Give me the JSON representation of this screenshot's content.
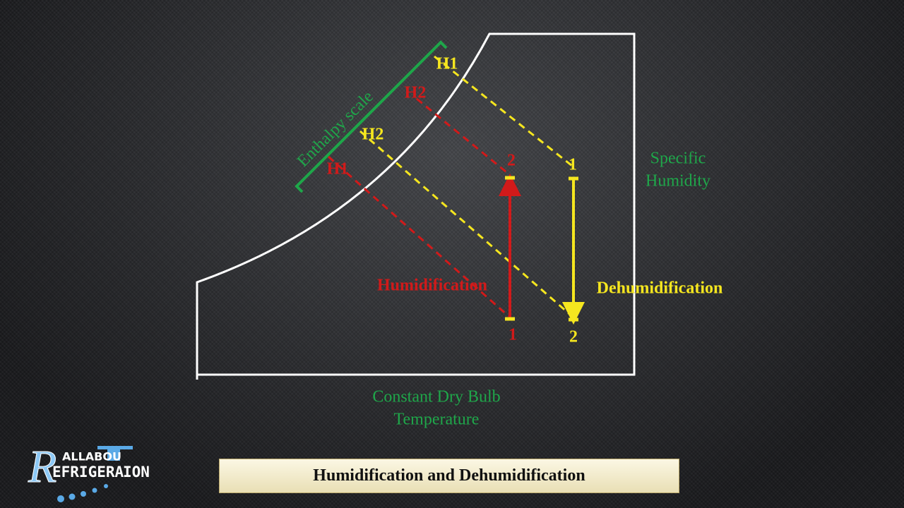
{
  "diagram": {
    "enthalpy_scale": {
      "label": "Enthalpy scale"
    },
    "enthalpy_marks": [
      {
        "label": "H1",
        "process": "dehumidification"
      },
      {
        "label": "H2",
        "process": "humidification"
      },
      {
        "label": "H2",
        "process": "dehumidification"
      },
      {
        "label": "H1",
        "process": "humidification"
      }
    ],
    "humidification": {
      "label": "Humidification",
      "start": "1",
      "end": "2"
    },
    "dehumidification": {
      "label": "Dehumidification",
      "start": "1",
      "end": "2"
    },
    "axis_labels": {
      "specific_humidity": [
        "Specific",
        "Humidity"
      ],
      "dry_bulb": [
        "Constant Dry Bulb",
        "Temperature"
      ]
    }
  },
  "logo": {
    "top": "ALLABOU",
    "initial": "R",
    "middle": "EFRIGERA",
    "end": "ION"
  },
  "caption": "Humidification and Dehumidification"
}
